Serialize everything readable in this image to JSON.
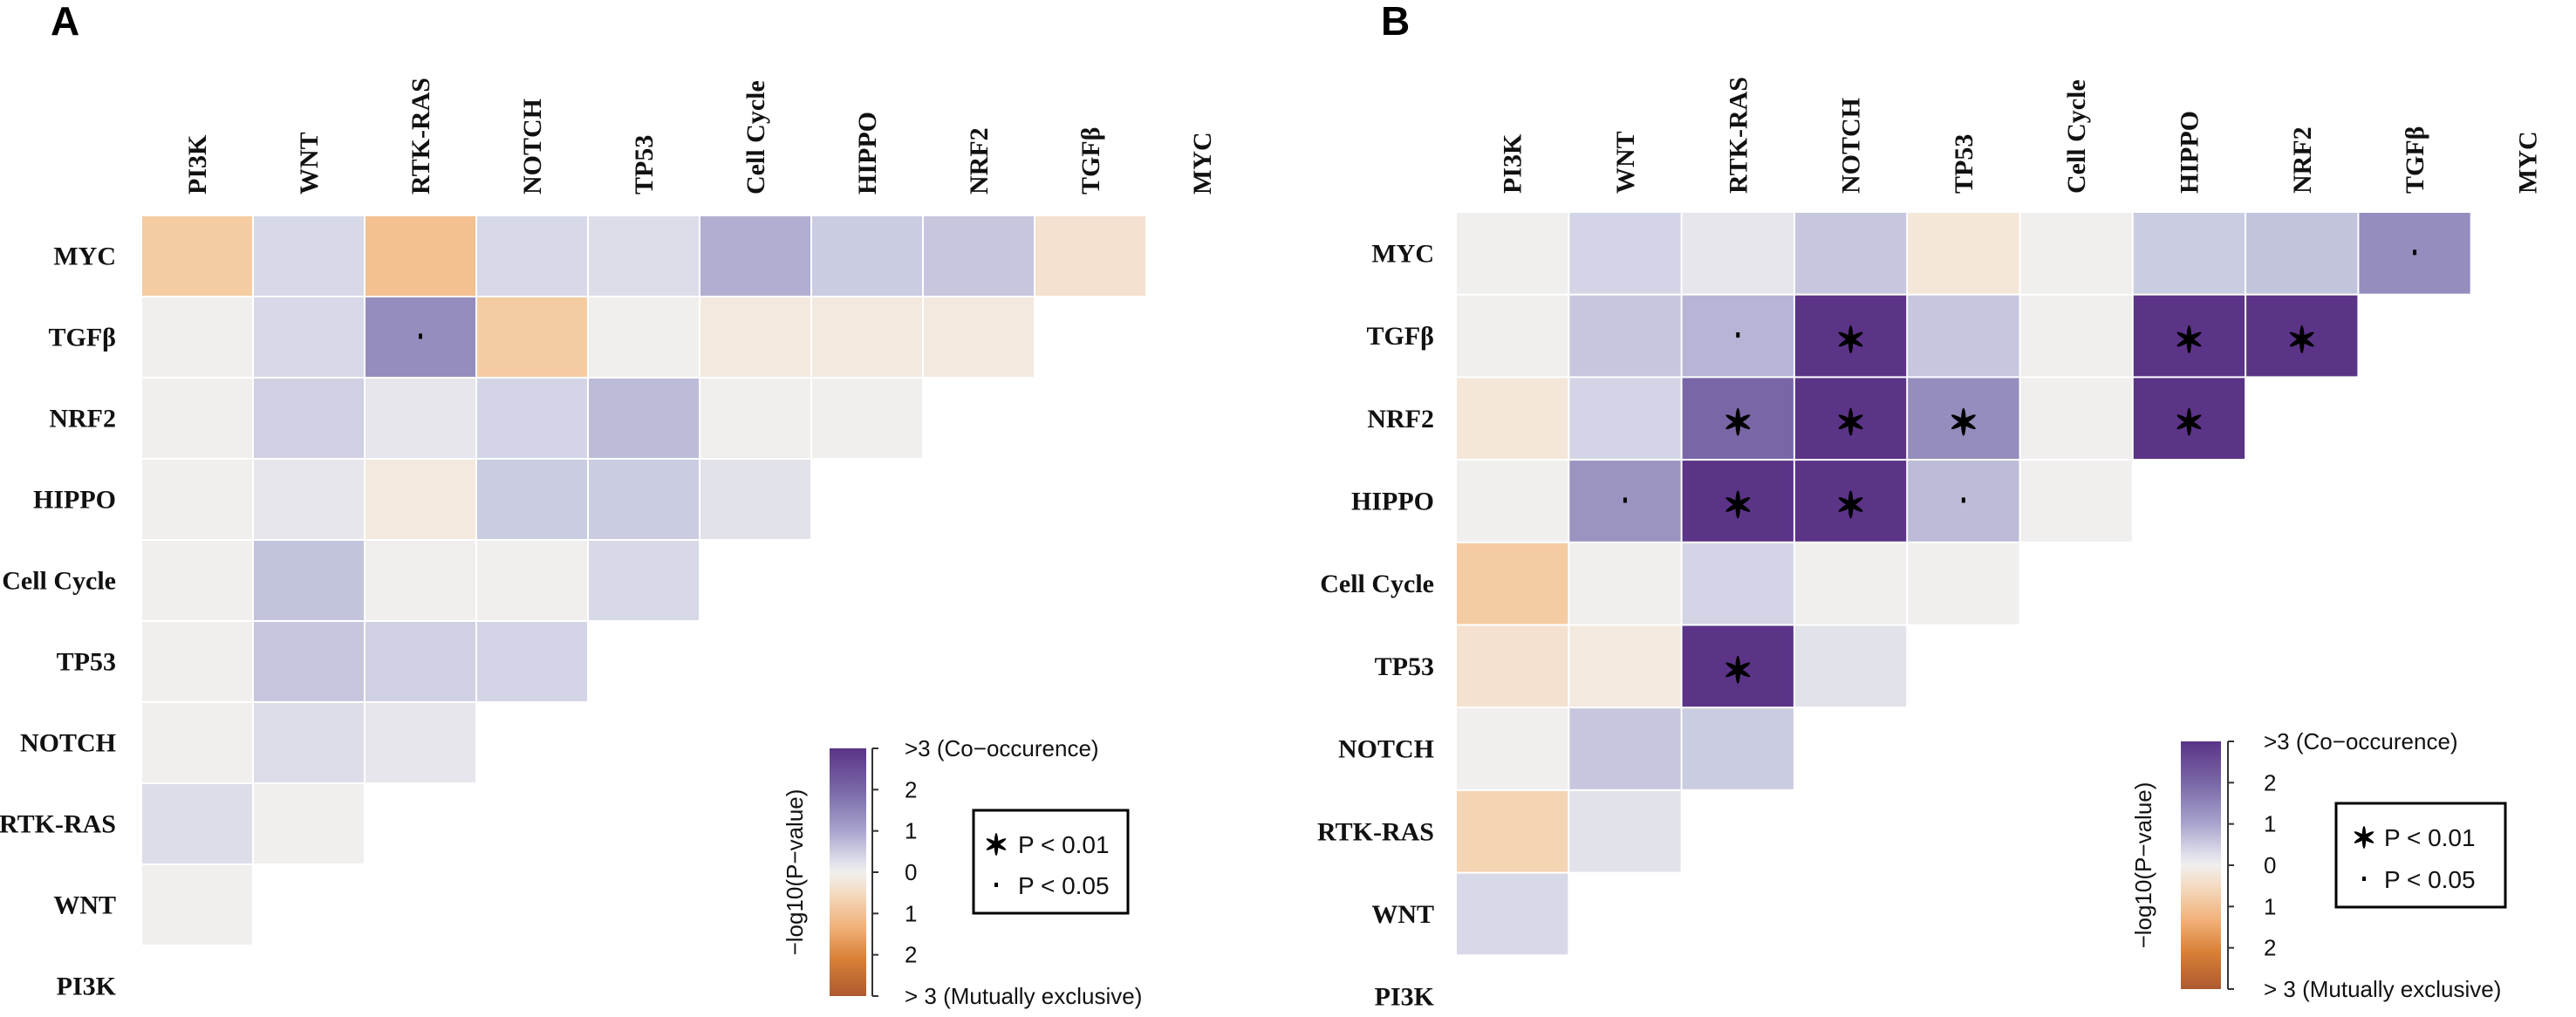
{
  "chart_data": [
    {
      "type": "heatmap",
      "panel_label": "A",
      "rows": [
        "MYC",
        "TGFβ",
        "NRF2",
        "HIPPO",
        "Cell Cycle",
        "TP53",
        "NOTCH",
        "RTK-RAS",
        "WNT",
        "PI3K"
      ],
      "columns": [
        "PI3K",
        "WNT",
        "RTK-RAS",
        "NOTCH",
        "TP53",
        "Cell Cycle",
        "HIPPO",
        "NRF2",
        "TGFβ",
        "MYC"
      ],
      "values_note": "signed -log10(P-value): positive = co-occurrence, negative = mutually exclusive",
      "values": [
        [
          -0.9,
          0.5,
          -1.1,
          0.5,
          0.4,
          1.3,
          0.8,
          0.9,
          -0.4
        ],
        [
          0,
          0.5,
          1.8,
          -0.9,
          0,
          -0.2,
          -0.2,
          -0.2
        ],
        [
          0,
          0.7,
          0.2,
          0.6,
          1.1,
          0,
          0
        ],
        [
          0,
          0.2,
          -0.2,
          0.8,
          0.8,
          0.3
        ],
        [
          0,
          1.0,
          0,
          0,
          0.5
        ],
        [
          0,
          0.9,
          0.7,
          0.6
        ],
        [
          0,
          0.4,
          0.2
        ],
        [
          0.4,
          0
        ],
        [
          0
        ]
      ],
      "significance": [
        [
          "",
          "",
          "",
          "",
          "",
          "",
          "",
          "",
          ""
        ],
        [
          "",
          "",
          ".",
          "",
          "",
          "",
          "",
          ""
        ],
        [
          "",
          "",
          "",
          "",
          "",
          "",
          ""
        ],
        [
          "",
          "",
          "",
          "",
          "",
          ""
        ],
        [
          "",
          "",
          "",
          "",
          ""
        ],
        [
          "",
          "",
          "",
          ""
        ],
        [
          "",
          "",
          ""
        ],
        [
          "",
          ""
        ],
        [
          ""
        ]
      ],
      "colorbar": {
        "title": "−log10(P−value)",
        "range": [
          -3,
          3
        ],
        "tick_labels": [
          ">3 (Co−occurence)",
          "2",
          "1",
          "0",
          "1",
          "2",
          "> 3 (Mutually exclusive)"
        ]
      },
      "legend": {
        "items": [
          {
            "symbol": "*",
            "label": "P < 0.01"
          },
          {
            "symbol": "·",
            "label": "P < 0.05"
          }
        ]
      }
    },
    {
      "type": "heatmap",
      "panel_label": "B",
      "rows": [
        "MYC",
        "TGFβ",
        "NRF2",
        "HIPPO",
        "Cell Cycle",
        "TP53",
        "NOTCH",
        "RTK-RAS",
        "WNT",
        "PI3K"
      ],
      "columns": [
        "PI3K",
        "WNT",
        "RTK-RAS",
        "NOTCH",
        "TP53",
        "Cell Cycle",
        "HIPPO",
        "NRF2",
        "TGFβ",
        "MYC"
      ],
      "values_note": "signed -log10(P-value): positive = co-occurrence, negative = mutually exclusive",
      "values": [
        [
          0,
          0.6,
          0.2,
          0.9,
          -0.3,
          0,
          0.8,
          1.0,
          1.8
        ],
        [
          0,
          0.9,
          1.2,
          3,
          0.9,
          0,
          3,
          3
        ],
        [
          -0.3,
          0.6,
          2.3,
          3,
          1.8,
          0,
          3
        ],
        [
          0,
          1.7,
          3,
          3,
          1.1,
          0
        ],
        [
          -0.9,
          0,
          0.6,
          0,
          0
        ],
        [
          -0.4,
          -0.2,
          3,
          0.3
        ],
        [
          0,
          0.9,
          0.8
        ],
        [
          -0.7,
          0.3
        ],
        [
          0.5
        ]
      ],
      "significance": [
        [
          "",
          "",
          "",
          "",
          "",
          "",
          "",
          "",
          "."
        ],
        [
          "",
          "",
          ".",
          "*",
          "",
          "",
          "*",
          "*"
        ],
        [
          "",
          "",
          "*",
          "*",
          "*",
          "",
          "*"
        ],
        [
          "",
          ".",
          "*",
          "*",
          ".",
          ""
        ],
        [
          "",
          "",
          "",
          "",
          ""
        ],
        [
          "",
          "",
          "*",
          ""
        ],
        [
          "",
          "",
          ""
        ],
        [
          "",
          ""
        ],
        [
          ""
        ]
      ],
      "colorbar": {
        "title": "−log10(P−value)",
        "range": [
          -3,
          3
        ],
        "tick_labels": [
          ">3 (Co−occurence)",
          "2",
          "1",
          "0",
          "1",
          "2",
          "> 3 (Mutually exclusive)"
        ]
      },
      "legend": {
        "items": [
          {
            "symbol": "*",
            "label": "P < 0.01"
          },
          {
            "symbol": "·",
            "label": "P < 0.05"
          }
        ]
      }
    }
  ],
  "colors": {
    "co_occurrence_max": "#5b3387",
    "neutral": "#f0efee",
    "mutually_exclusive_max": "#b0582a"
  }
}
